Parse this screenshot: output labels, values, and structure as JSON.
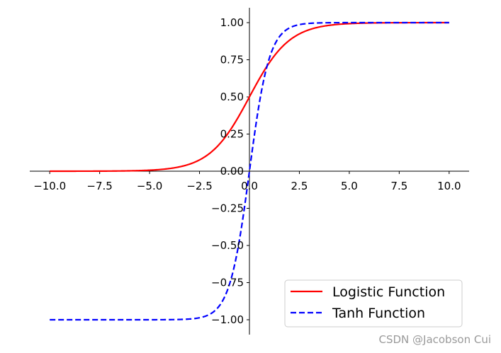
{
  "chart_data": {
    "type": "line",
    "title": "",
    "xlabel": "",
    "ylabel": "",
    "xlim": [
      -11,
      11
    ],
    "ylim": [
      -1.1,
      1.1
    ],
    "x_ticks": [
      "−10.0",
      "−7.5",
      "−5.0",
      "−2.5",
      "0.0",
      "2.5",
      "5.0",
      "7.5",
      "10.0"
    ],
    "x_tick_values": [
      -10,
      -7.5,
      -5,
      -2.5,
      0,
      2.5,
      5,
      7.5,
      10
    ],
    "y_ticks": [
      "−1.00",
      "−0.75",
      "−0.50",
      "−0.25",
      "0.00",
      "0.25",
      "0.50",
      "0.75",
      "1.00"
    ],
    "y_tick_values": [
      -1,
      -0.75,
      -0.5,
      -0.25,
      0,
      0.25,
      0.5,
      0.75,
      1
    ],
    "grid": false,
    "legend_position": "lower-right",
    "x": [
      -10,
      -8,
      -6,
      -5,
      -4,
      -3,
      -2.5,
      -2,
      -1.5,
      -1,
      -0.5,
      0,
      0.5,
      1,
      1.5,
      2,
      2.5,
      3,
      4,
      5,
      6,
      8,
      10
    ],
    "series": [
      {
        "name": "Logistic Function",
        "color": "#ff0000",
        "style": "solid",
        "values": [
          5e-05,
          0.0003,
          0.0025,
          0.0067,
          0.018,
          0.047,
          0.076,
          0.119,
          0.182,
          0.269,
          0.378,
          0.5,
          0.622,
          0.731,
          0.818,
          0.881,
          0.924,
          0.953,
          0.982,
          0.993,
          0.998,
          0.9997,
          1.0
        ]
      },
      {
        "name": "Tanh Function",
        "color": "#0000ff",
        "style": "dashed",
        "values": [
          -1.0,
          -1.0,
          -1.0,
          -0.9999,
          -0.9993,
          -0.995,
          -0.987,
          -0.964,
          -0.905,
          -0.762,
          -0.462,
          0.0,
          0.462,
          0.762,
          0.905,
          0.964,
          0.987,
          0.995,
          0.9993,
          0.9999,
          1.0,
          1.0,
          1.0
        ]
      }
    ]
  },
  "watermark": "CSDN @Jacobson Cui"
}
